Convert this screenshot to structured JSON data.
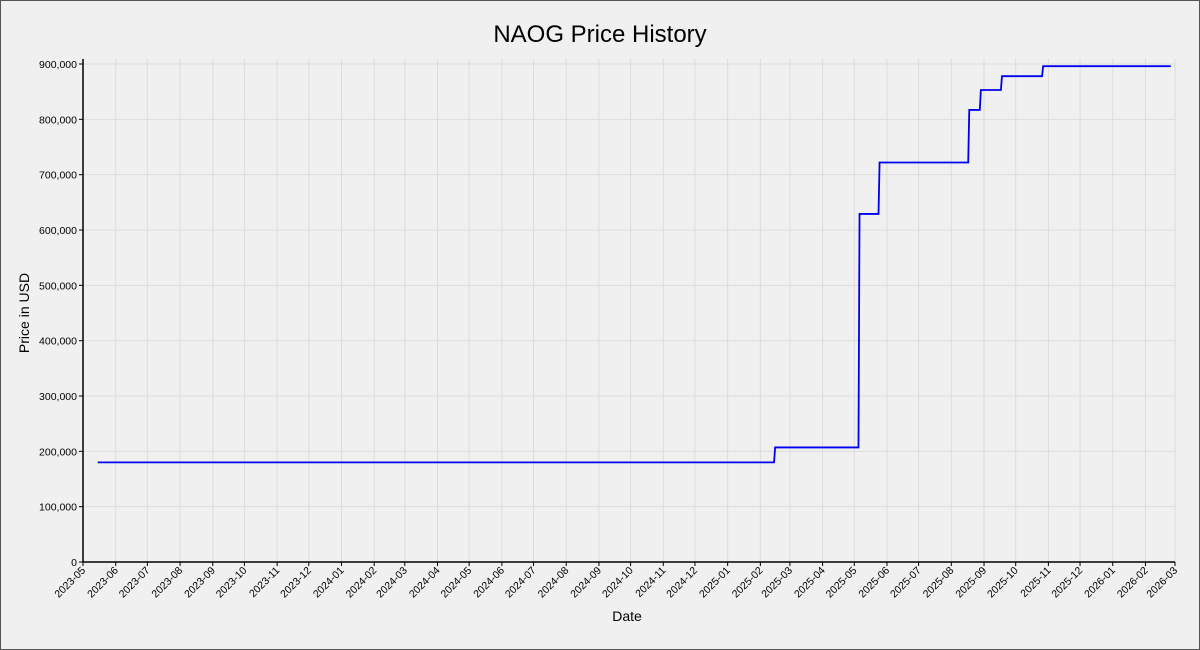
{
  "chart_data": {
    "type": "line",
    "title": "NAOG Price History",
    "xlabel": "Date",
    "ylabel": "Price in USD",
    "x_axis": {
      "type": "date",
      "range": [
        "2023-05-01",
        "2026-03-01"
      ],
      "tick_labels": [
        "2023-05",
        "2023-06",
        "2023-07",
        "2023-08",
        "2023-09",
        "2023-10",
        "2023-11",
        "2023-12",
        "2024-01",
        "2024-02",
        "2024-03",
        "2024-04",
        "2024-05",
        "2024-06",
        "2024-07",
        "2024-08",
        "2024-09",
        "2024-10",
        "2024-11",
        "2024-12",
        "2025-01",
        "2025-02",
        "2025-03",
        "2025-04",
        "2025-05",
        "2025-06",
        "2025-07",
        "2025-08",
        "2025-09",
        "2025-10",
        "2025-11",
        "2025-12",
        "2026-01",
        "2026-02",
        "2026-03"
      ]
    },
    "y_axis": {
      "range": [
        0,
        900000
      ],
      "ticks": [
        0,
        100000,
        200000,
        300000,
        400000,
        500000,
        600000,
        700000,
        800000,
        900000
      ],
      "tick_labels": [
        "0",
        "100,000",
        "200,000",
        "300,000",
        "400,000",
        "500,000",
        "600,000",
        "700,000",
        "800,000",
        "900,000"
      ]
    },
    "grid": true,
    "legend": "none",
    "series": [
      {
        "color": "#0000ee",
        "step": true,
        "points": [
          {
            "x": "2023-05-15",
            "y": 180000
          },
          {
            "x": "2025-02-14",
            "y": 180000
          },
          {
            "x": "2025-02-15",
            "y": 207000
          },
          {
            "x": "2025-05-05",
            "y": 207000
          },
          {
            "x": "2025-05-06",
            "y": 629000
          },
          {
            "x": "2025-05-24",
            "y": 629000
          },
          {
            "x": "2025-05-25",
            "y": 722000
          },
          {
            "x": "2025-08-17",
            "y": 722000
          },
          {
            "x": "2025-08-18",
            "y": 817000
          },
          {
            "x": "2025-08-28",
            "y": 817000
          },
          {
            "x": "2025-08-29",
            "y": 853000
          },
          {
            "x": "2025-09-17",
            "y": 853000
          },
          {
            "x": "2025-09-18",
            "y": 878000
          },
          {
            "x": "2025-10-26",
            "y": 878000
          },
          {
            "x": "2025-10-27",
            "y": 896000
          },
          {
            "x": "2026-02-25",
            "y": 896000
          }
        ]
      }
    ]
  }
}
